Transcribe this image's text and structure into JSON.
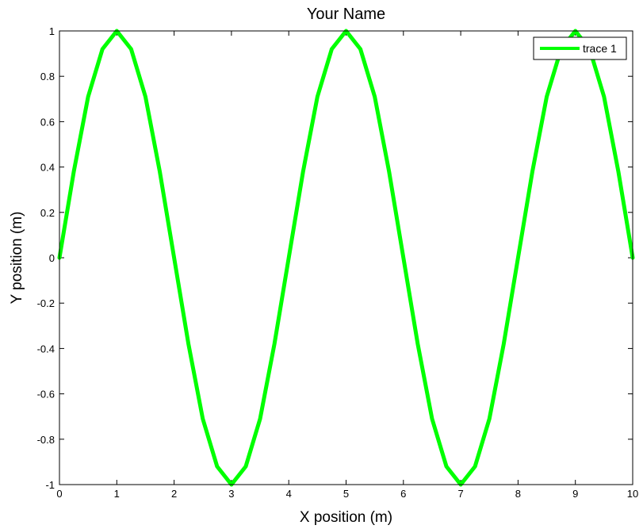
{
  "chart_data": {
    "type": "line",
    "title": "Your Name",
    "xlabel": "X position (m)",
    "ylabel": "Y position (m)",
    "xlim": [
      0,
      10
    ],
    "ylim": [
      -1,
      1
    ],
    "xticks": [
      0,
      1,
      2,
      3,
      4,
      5,
      6,
      7,
      8,
      9,
      10
    ],
    "xtick_labels": [
      "0",
      "1",
      "2",
      "3",
      "4",
      "5",
      "6",
      "7",
      "8",
      "9",
      "10"
    ],
    "yticks": [
      -1,
      -0.8,
      -0.6,
      -0.4,
      -0.2,
      0,
      0.2,
      0.4,
      0.6,
      0.8,
      1
    ],
    "ytick_labels": [
      "-1",
      "-0.8",
      "-0.6",
      "-0.4",
      "-0.2",
      "0",
      "0.2",
      "0.4",
      "0.6",
      "0.8",
      "1"
    ],
    "grid": false,
    "legend_position": "top-right",
    "series": [
      {
        "name": "trace 1",
        "color": "#00ff00",
        "x": [
          0,
          0.25,
          0.5,
          0.75,
          1,
          1.25,
          1.5,
          1.75,
          2,
          2.25,
          2.5,
          2.75,
          3,
          3.25,
          3.5,
          3.75,
          4,
          4.25,
          4.5,
          4.75,
          5,
          5.25,
          5.5,
          5.75,
          6,
          6.25,
          6.5,
          6.75,
          7,
          7.25,
          7.5,
          7.75,
          8,
          8.25,
          8.5,
          8.75,
          9,
          9.25,
          9.5,
          9.75,
          10
        ],
        "y": [
          0,
          0.38,
          0.71,
          0.92,
          1,
          0.92,
          0.71,
          0.38,
          0,
          -0.38,
          -0.71,
          -0.92,
          -1,
          -0.92,
          -0.71,
          -0.38,
          0,
          0.38,
          0.71,
          0.92,
          1,
          0.92,
          0.71,
          0.38,
          0,
          -0.38,
          -0.71,
          -0.92,
          -1,
          -0.92,
          -0.71,
          -0.38,
          0,
          0.38,
          0.71,
          0.92,
          1,
          0.92,
          0.71,
          0.38,
          0
        ]
      }
    ]
  }
}
